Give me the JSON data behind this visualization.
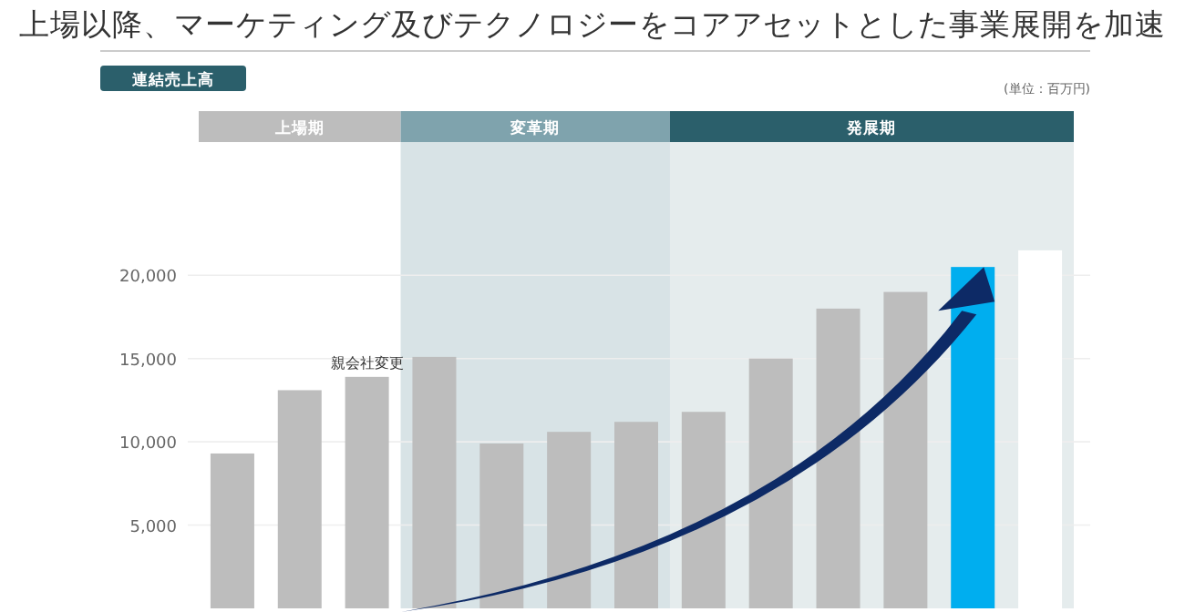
{
  "chart_data": {
    "type": "bar",
    "title": "上場以降、マーケティング及びテクノロジーをコアアセットとした事業展開を加速",
    "subtitle": "連結売上高",
    "annotations": [
      "(単位：百万円)",
      "親会社変更",
      "上場期",
      "変革期",
      "発展期"
    ],
    "categories": [
      null,
      null,
      null,
      null,
      null,
      null,
      null,
      null,
      null,
      null,
      null,
      null,
      null
    ],
    "values": [
      9300,
      13100,
      13900,
      15100,
      9900,
      10600,
      11200,
      11800,
      15000,
      18000,
      19000,
      20500,
      21500
    ],
    "colors": [
      "#bdbdbd",
      "#bdbdbd",
      "#bdbdbd",
      "#bdbdbd",
      "#bdbdbd",
      "#bdbdbd",
      "#bdbdbd",
      "#bdbdbd",
      "#bdbdbd",
      "#bdbdbd",
      "#bdbdbd",
      "#00aeef",
      "#ffffff"
    ],
    "ylim": [
      0,
      28000
    ],
    "yticks": [
      {
        "value": 5000,
        "label": "5,000"
      },
      {
        "value": 10000,
        "label": "10,000"
      },
      {
        "value": 15000,
        "label": "15,000"
      },
      {
        "value": 20000,
        "label": "20,000"
      }
    ],
    "grid": "y",
    "tick_labels": "y"
  }
}
